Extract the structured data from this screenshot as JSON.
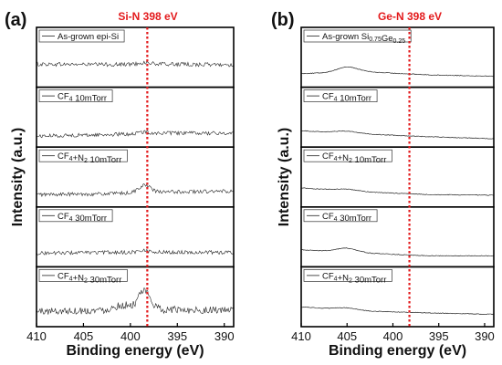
{
  "chart_data": [
    {
      "panel_label": "(a)",
      "type": "line",
      "title": "Si-N 398 eV",
      "xlabel": "Binding energy (eV)",
      "ylabel": "Intensity (a.u.)",
      "xlim": [
        410,
        389
      ],
      "x_ticks": [
        410,
        405,
        400,
        395,
        390
      ],
      "reference_line": {
        "x": 398.2,
        "color": "#e31a1c",
        "style": "dotted"
      },
      "series": [
        {
          "name": "As-grown epi-Si",
          "legend": [
            {
              "t": "As-grown epi-Si"
            }
          ],
          "noise": 0.12,
          "peak": 0.05,
          "baseline": [
            0.58,
            0.57,
            0.58,
            0.56
          ]
        },
        {
          "name": "CF4 10mTorr",
          "legend": [
            {
              "t": "CF"
            },
            {
              "t": "4",
              "sub": true
            },
            {
              "t": " 10mTorr"
            }
          ],
          "noise": 0.11,
          "peak": 0.05,
          "baseline": [
            0.22,
            0.26,
            0.31,
            0.3
          ]
        },
        {
          "name": "CF4+N2 10mTorr",
          "legend": [
            {
              "t": "CF"
            },
            {
              "t": "4",
              "sub": true
            },
            {
              "t": "+N"
            },
            {
              "t": "2",
              "sub": true
            },
            {
              "t": " 10mTorr"
            }
          ],
          "noise": 0.11,
          "peak": 0.22,
          "baseline": [
            0.26,
            0.28,
            0.34,
            0.36
          ]
        },
        {
          "name": "CF4 30mTorr",
          "legend": [
            {
              "t": "CF"
            },
            {
              "t": "4",
              "sub": true
            },
            {
              "t": " 30mTorr"
            }
          ],
          "noise": 0.11,
          "peak": 0.05,
          "baseline": [
            0.3,
            0.32,
            0.33,
            0.32
          ]
        },
        {
          "name": "CF4+N2 30mTorr",
          "legend": [
            {
              "t": "CF"
            },
            {
              "t": "4",
              "sub": true
            },
            {
              "t": "+N"
            },
            {
              "t": "2",
              "sub": true
            },
            {
              "t": " 30mTorr"
            }
          ],
          "noise": 0.22,
          "peak": 0.55,
          "baseline": [
            0.35,
            0.38,
            0.4,
            0.38
          ]
        }
      ]
    },
    {
      "panel_label": "(b)",
      "type": "line",
      "title": "Ge-N 398 eV",
      "xlabel": "Binding energy (eV)",
      "ylabel": "Intensity (a.u.)",
      "xlim": [
        410,
        389
      ],
      "x_ticks": [
        410,
        405,
        400,
        395,
        390
      ],
      "reference_line": {
        "x": 398.2,
        "color": "#e31a1c",
        "style": "dotted"
      },
      "series": [
        {
          "name": "As-grown Si0.75Ge0.25",
          "legend": [
            {
              "t": "As-grown Si"
            },
            {
              "t": "0.75",
              "sub": true
            },
            {
              "t": "Ge"
            },
            {
              "t": "0.25",
              "sub": true
            }
          ],
          "noise": 0.02,
          "hump": 0.16,
          "baseline": [
            0.3,
            0.35,
            0.26,
            0.22
          ]
        },
        {
          "name": "CF4 10mTorr",
          "legend": [
            {
              "t": "CF"
            },
            {
              "t": "4",
              "sub": true
            },
            {
              "t": " 10mTorr"
            }
          ],
          "noise": 0.02,
          "hump": 0.06,
          "baseline": [
            0.38,
            0.28,
            0.2,
            0.14
          ]
        },
        {
          "name": "CF4+N2 10mTorr",
          "legend": [
            {
              "t": "CF"
            },
            {
              "t": "4",
              "sub": true
            },
            {
              "t": "+N"
            },
            {
              "t": "2",
              "sub": true
            },
            {
              "t": " 10mTorr"
            }
          ],
          "noise": 0.02,
          "hump": 0.05,
          "baseline": [
            0.46,
            0.34,
            0.26,
            0.24
          ]
        },
        {
          "name": "CF4 30mTorr",
          "legend": [
            {
              "t": "CF"
            },
            {
              "t": "4",
              "sub": true
            },
            {
              "t": " 30mTorr"
            }
          ],
          "noise": 0.02,
          "hump": 0.12,
          "baseline": [
            0.4,
            0.3,
            0.22,
            0.22
          ]
        },
        {
          "name": "CF4+N2 30mTorr",
          "legend": [
            {
              "t": "CF"
            },
            {
              "t": "4",
              "sub": true
            },
            {
              "t": "+N"
            },
            {
              "t": "2",
              "sub": true
            },
            {
              "t": " 30mTorr"
            }
          ],
          "noise": 0.02,
          "hump": 0.06,
          "baseline": [
            0.48,
            0.36,
            0.3,
            0.26
          ]
        }
      ]
    }
  ]
}
